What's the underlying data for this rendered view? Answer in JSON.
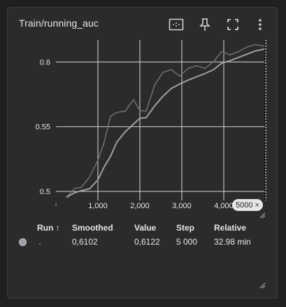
{
  "card": {
    "title": "Train/running_auc"
  },
  "toolbar": {
    "icons": [
      "fit-domain-icon",
      "pin-icon",
      "fullscreen-icon",
      "more-vert-icon"
    ]
  },
  "step_chip": {
    "label": "5000",
    "close": "×"
  },
  "colors": {
    "background": "#202020",
    "card": "#2b2b2b",
    "grid": "#d8d8d8",
    "raw_line": "#6a6e73",
    "smoothed_line": "#9aa0a6",
    "run_color": "#9aa0a6"
  },
  "chart_data": {
    "type": "line",
    "xlabel": "",
    "ylabel": "",
    "xlim": [
      0,
      5000
    ],
    "ylim": [
      0.493,
      0.617
    ],
    "x_ticks": [
      1000,
      2000,
      3000,
      4000
    ],
    "x_tick_labels": [
      "1,000",
      "2,000",
      "3,000",
      "4,000"
    ],
    "y_ticks": [
      0.5,
      0.55,
      0.6
    ],
    "y_tick_labels": [
      "0.5",
      "0.55",
      "0.6"
    ],
    "grid": true,
    "cursor_x": 5000,
    "series": [
      {
        "role": "raw",
        "x": [
          250,
          450,
          600,
          800,
          1000,
          1150,
          1300,
          1450,
          1650,
          1850,
          2000,
          2150,
          2350,
          2550,
          2750,
          2950,
          3150,
          3350,
          3550,
          3750,
          3950,
          4150,
          4350,
          4550,
          4750,
          4900,
          5000
        ],
        "y": [
          0.4955,
          0.5025,
          0.503,
          0.511,
          0.524,
          0.538,
          0.558,
          0.561,
          0.562,
          0.571,
          0.5625,
          0.562,
          0.582,
          0.592,
          0.594,
          0.589,
          0.595,
          0.597,
          0.595,
          0.6,
          0.608,
          0.6055,
          0.608,
          0.6115,
          0.6135,
          0.6125,
          0.6122
        ]
      },
      {
        "role": "smoothed",
        "x": [
          250,
          450,
          600,
          800,
          1000,
          1150,
          1300,
          1450,
          1650,
          1850,
          2000,
          2150,
          2350,
          2550,
          2750,
          2950,
          3150,
          3350,
          3550,
          3750,
          3950,
          4150,
          4350,
          4550,
          4750,
          4900,
          5000
        ],
        "y": [
          0.4955,
          0.499,
          0.5005,
          0.502,
          0.509,
          0.519,
          0.527,
          0.538,
          0.546,
          0.552,
          0.5565,
          0.557,
          0.566,
          0.5735,
          0.5795,
          0.583,
          0.586,
          0.5885,
          0.591,
          0.594,
          0.599,
          0.601,
          0.6035,
          0.606,
          0.6085,
          0.6095,
          0.6102
        ]
      }
    ]
  },
  "table": {
    "headers": {
      "run": "Run ↑",
      "smoothed": "Smoothed",
      "value": "Value",
      "step": "Step",
      "relative": "Relative"
    },
    "rows": [
      {
        "run": ".",
        "smoothed": "0,6102",
        "value": "0,6122",
        "step": "5 000",
        "relative": "32.98 min"
      }
    ]
  }
}
